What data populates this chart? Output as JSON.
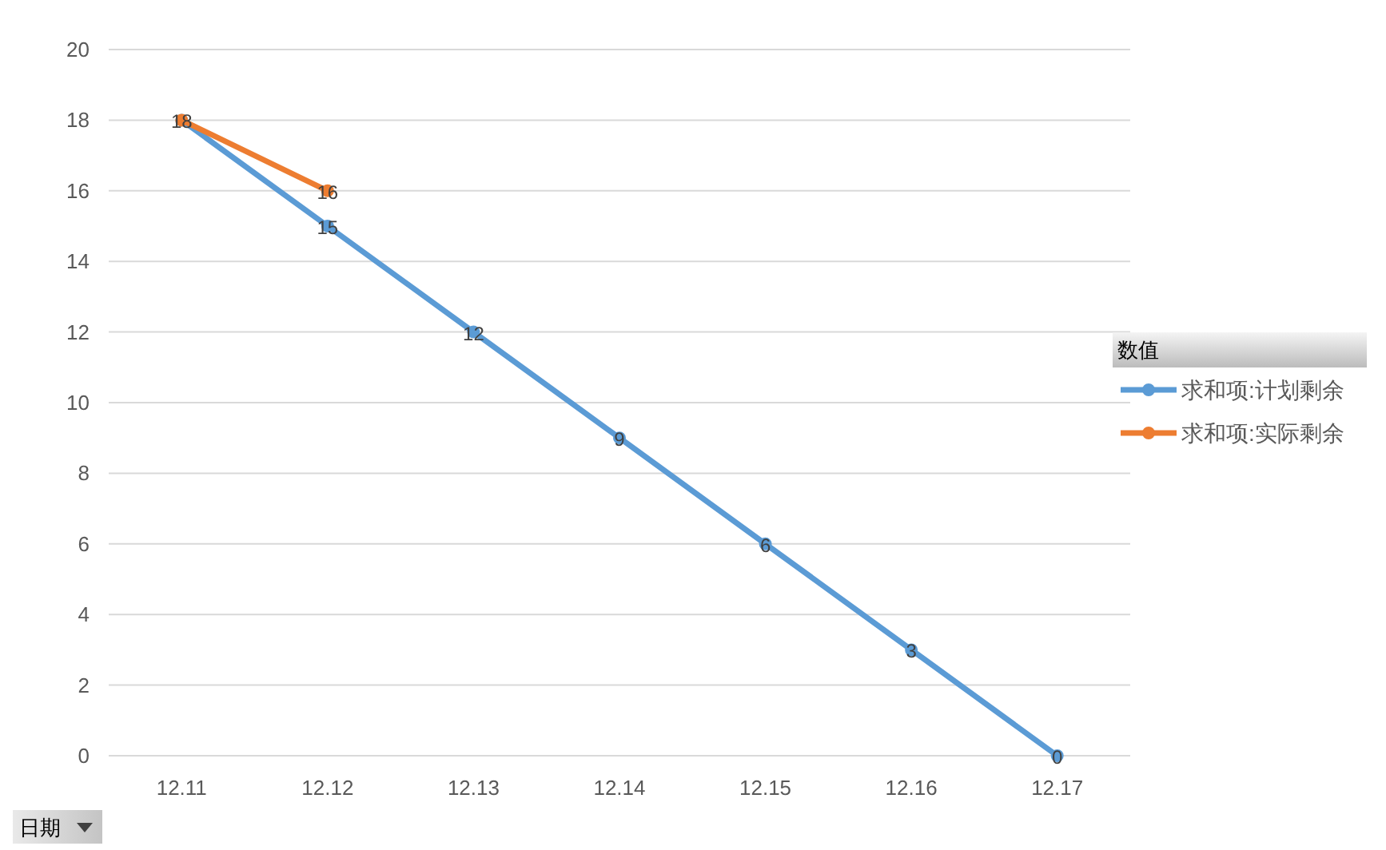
{
  "chart_data": {
    "type": "line",
    "categories": [
      "12.11",
      "12.12",
      "12.13",
      "12.14",
      "12.15",
      "12.16",
      "12.17"
    ],
    "series": [
      {
        "name": "求和项:计划剩余",
        "color": "#5b9bd5",
        "values": [
          18,
          15,
          12,
          9,
          6,
          3,
          0
        ],
        "value_labels": [
          "18",
          "15",
          "12",
          "9",
          "6",
          "3",
          "0"
        ]
      },
      {
        "name": "求和项:实际剩余",
        "color": "#ed7d31",
        "values": [
          18,
          16,
          null,
          null,
          null,
          null,
          null
        ],
        "value_labels": [
          null,
          "16",
          null,
          null,
          null,
          null,
          null
        ]
      }
    ],
    "ylim": [
      0,
      20
    ],
    "yticks": [
      0,
      2,
      4,
      6,
      8,
      10,
      12,
      14,
      16,
      18,
      20
    ],
    "grid": "y",
    "legend": "right",
    "legend_title": "数值",
    "xlabel": "日期",
    "marker": "circle",
    "line_style": "solid"
  }
}
